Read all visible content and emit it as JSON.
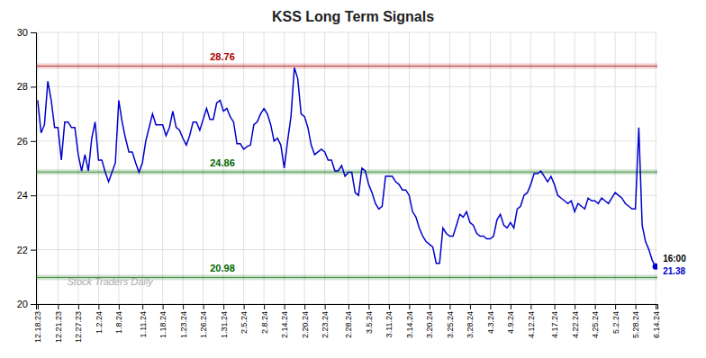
{
  "chart_data": {
    "type": "line",
    "title": "KSS Long Term Signals",
    "color": "#0000cc",
    "ylim": [
      20,
      30
    ],
    "yticks": [
      20,
      22,
      24,
      26,
      28,
      30
    ],
    "grid": true,
    "categories": [
      "12.18.23",
      null,
      null,
      null,
      null,
      null,
      "12.21.23",
      null,
      null,
      null,
      null,
      null,
      "12.27.23",
      null,
      null,
      null,
      null,
      null,
      "1.2.24",
      null,
      null,
      null,
      null,
      null,
      "1.8.24",
      null,
      null,
      null,
      null,
      null,
      null,
      "1.11.24",
      null,
      null,
      null,
      null,
      null,
      "1.18.24",
      null,
      null,
      null,
      null,
      null,
      "1.23.24",
      null,
      null,
      null,
      null,
      null,
      "1.26.24",
      null,
      null,
      null,
      null,
      null,
      "1.31.24",
      null,
      null,
      null,
      null,
      null,
      "2.5.24",
      null,
      null,
      null,
      null,
      null,
      "2.8.24",
      null,
      null,
      null,
      null,
      null,
      "2.14.24",
      null,
      null,
      null,
      null,
      null,
      "2.20.24",
      null,
      null,
      null,
      null,
      null,
      "2.23.24",
      null,
      null,
      null,
      null,
      null,
      null,
      "2.28.24",
      null,
      null,
      null,
      null,
      null,
      "3.5.24",
      null,
      null,
      null,
      null,
      null,
      "3.11.24",
      null,
      null,
      null,
      null,
      null,
      "3.14.24",
      null,
      null,
      null,
      null,
      null,
      "3.20.24",
      null,
      null,
      null,
      null,
      null,
      "3.25.24",
      null,
      null,
      null,
      null,
      null,
      "3.28.24",
      null,
      null,
      null,
      null,
      null,
      "4.3.24",
      null,
      null,
      null,
      null,
      null,
      "4.9.24",
      null,
      null,
      null,
      null,
      null,
      "4.12.24",
      null,
      null,
      null,
      null,
      null,
      null,
      "4.17.24",
      null,
      null,
      null,
      null,
      null,
      "4.22.24",
      null,
      null,
      null,
      null,
      null,
      "4.25.24",
      null,
      null,
      null,
      null,
      null,
      "5.2.24",
      null,
      null,
      null,
      null,
      null,
      "5.28.24",
      null,
      null,
      null,
      null,
      null,
      "6.14.24"
    ],
    "values": [
      27.5,
      26.3,
      26.6,
      28.2,
      27.5,
      26.5,
      26.5,
      25.3,
      26.7,
      26.7,
      26.5,
      26.5,
      25.5,
      24.9,
      25.5,
      24.9,
      26.1,
      26.7,
      25.3,
      25.3,
      24.85,
      24.5,
      24.85,
      25.2,
      27.5,
      26.7,
      26.1,
      25.6,
      25.6,
      25.2,
      24.85,
      25.2,
      26.0,
      26.5,
      27.0,
      26.6,
      26.6,
      26.6,
      26.2,
      26.5,
      27.1,
      26.5,
      26.4,
      26.1,
      25.85,
      26.2,
      26.7,
      26.7,
      26.4,
      26.8,
      27.2,
      26.8,
      26.8,
      27.4,
      27.5,
      27.1,
      27.2,
      26.9,
      26.7,
      25.9,
      25.9,
      25.7,
      25.8,
      25.85,
      26.6,
      26.7,
      27.0,
      27.2,
      27.0,
      26.6,
      26.0,
      26.1,
      25.85,
      25.0,
      26.0,
      26.9,
      28.7,
      28.3,
      27.0,
      26.9,
      26.5,
      25.85,
      25.5,
      25.6,
      25.7,
      25.6,
      25.3,
      25.3,
      24.9,
      24.9,
      25.1,
      24.7,
      24.85,
      24.85,
      24.1,
      24.0,
      25.0,
      24.9,
      24.4,
      24.1,
      23.7,
      23.5,
      23.6,
      24.7,
      24.7,
      24.7,
      24.5,
      24.4,
      24.2,
      24.2,
      24.0,
      23.4,
      23.2,
      22.8,
      22.5,
      22.3,
      22.2,
      22.1,
      21.5,
      21.5,
      22.8,
      22.6,
      22.5,
      22.5,
      22.9,
      23.3,
      23.2,
      23.4,
      23.0,
      22.9,
      22.6,
      22.5,
      22.5,
      22.4,
      22.4,
      22.5,
      23.1,
      23.3,
      22.9,
      22.8,
      23.0,
      22.8,
      23.5,
      23.6,
      24.0,
      24.1,
      24.4,
      24.8,
      24.8,
      24.9,
      24.7,
      24.5,
      24.7,
      24.4,
      24.0,
      23.9,
      23.8,
      23.7,
      23.8,
      23.4,
      23.7,
      23.6,
      23.5,
      23.9,
      23.8,
      23.8,
      23.7,
      23.9,
      23.8,
      23.7,
      23.9,
      24.1,
      24.0,
      23.9,
      23.7,
      23.6,
      23.5,
      23.5,
      26.5,
      22.9,
      22.3,
      22.0,
      21.6,
      21.38
    ],
    "annotations": [
      {
        "text": "28.76",
        "y": 28.76,
        "color": "#aa0000"
      },
      {
        "text": "24.86",
        "y": 24.86,
        "color": "#006600"
      },
      {
        "text": "20.98",
        "y": 20.98,
        "color": "#006600"
      }
    ],
    "end_labels": [
      {
        "text": "16:00"
      },
      {
        "text": "21.38",
        "color": "#0000cc"
      }
    ],
    "watermark": "Stock Traders Daily"
  }
}
